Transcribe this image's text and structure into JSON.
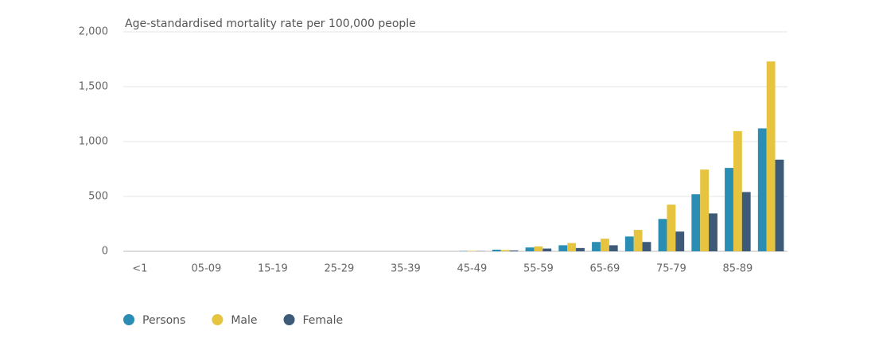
{
  "chart_data": {
    "type": "bar",
    "title": "Age-standardised mortality rate per 100,000 people",
    "categories": [
      "<1",
      null,
      "05-09",
      null,
      "15-19",
      null,
      "25-29",
      null,
      "35-39",
      null,
      "45-49",
      null,
      "55-59",
      null,
      "65-69",
      null,
      "75-79",
      null,
      "85-89",
      null
    ],
    "series": [
      {
        "name": "Persons",
        "color": "#2a8db4",
        "values": [
          0,
          0,
          0,
          0,
          0,
          0,
          0,
          0,
          0,
          0,
          3,
          15,
          35,
          55,
          85,
          135,
          295,
          520,
          760,
          1120
        ]
      },
      {
        "name": "Male",
        "color": "#e6c43f",
        "values": [
          0,
          0,
          0,
          0,
          0,
          0,
          0,
          0,
          0,
          0,
          4,
          12,
          45,
          75,
          115,
          195,
          425,
          745,
          1095,
          1730
        ]
      },
      {
        "name": "Female",
        "color": "#3d5a78",
        "values": [
          0,
          0,
          0,
          0,
          0,
          0,
          0,
          0,
          0,
          0,
          2,
          8,
          25,
          30,
          55,
          85,
          180,
          345,
          540,
          835
        ]
      }
    ],
    "ylim": [
      0,
      2000
    ],
    "yticks": [
      0,
      {
        "value": 500,
        "label": "500"
      },
      {
        "value": 1000,
        "label": "1,000"
      },
      {
        "value": 1500,
        "label": "1,500"
      },
      {
        "value": 2000,
        "label": "2,000"
      }
    ],
    "grid": true,
    "legend": "bottom"
  }
}
